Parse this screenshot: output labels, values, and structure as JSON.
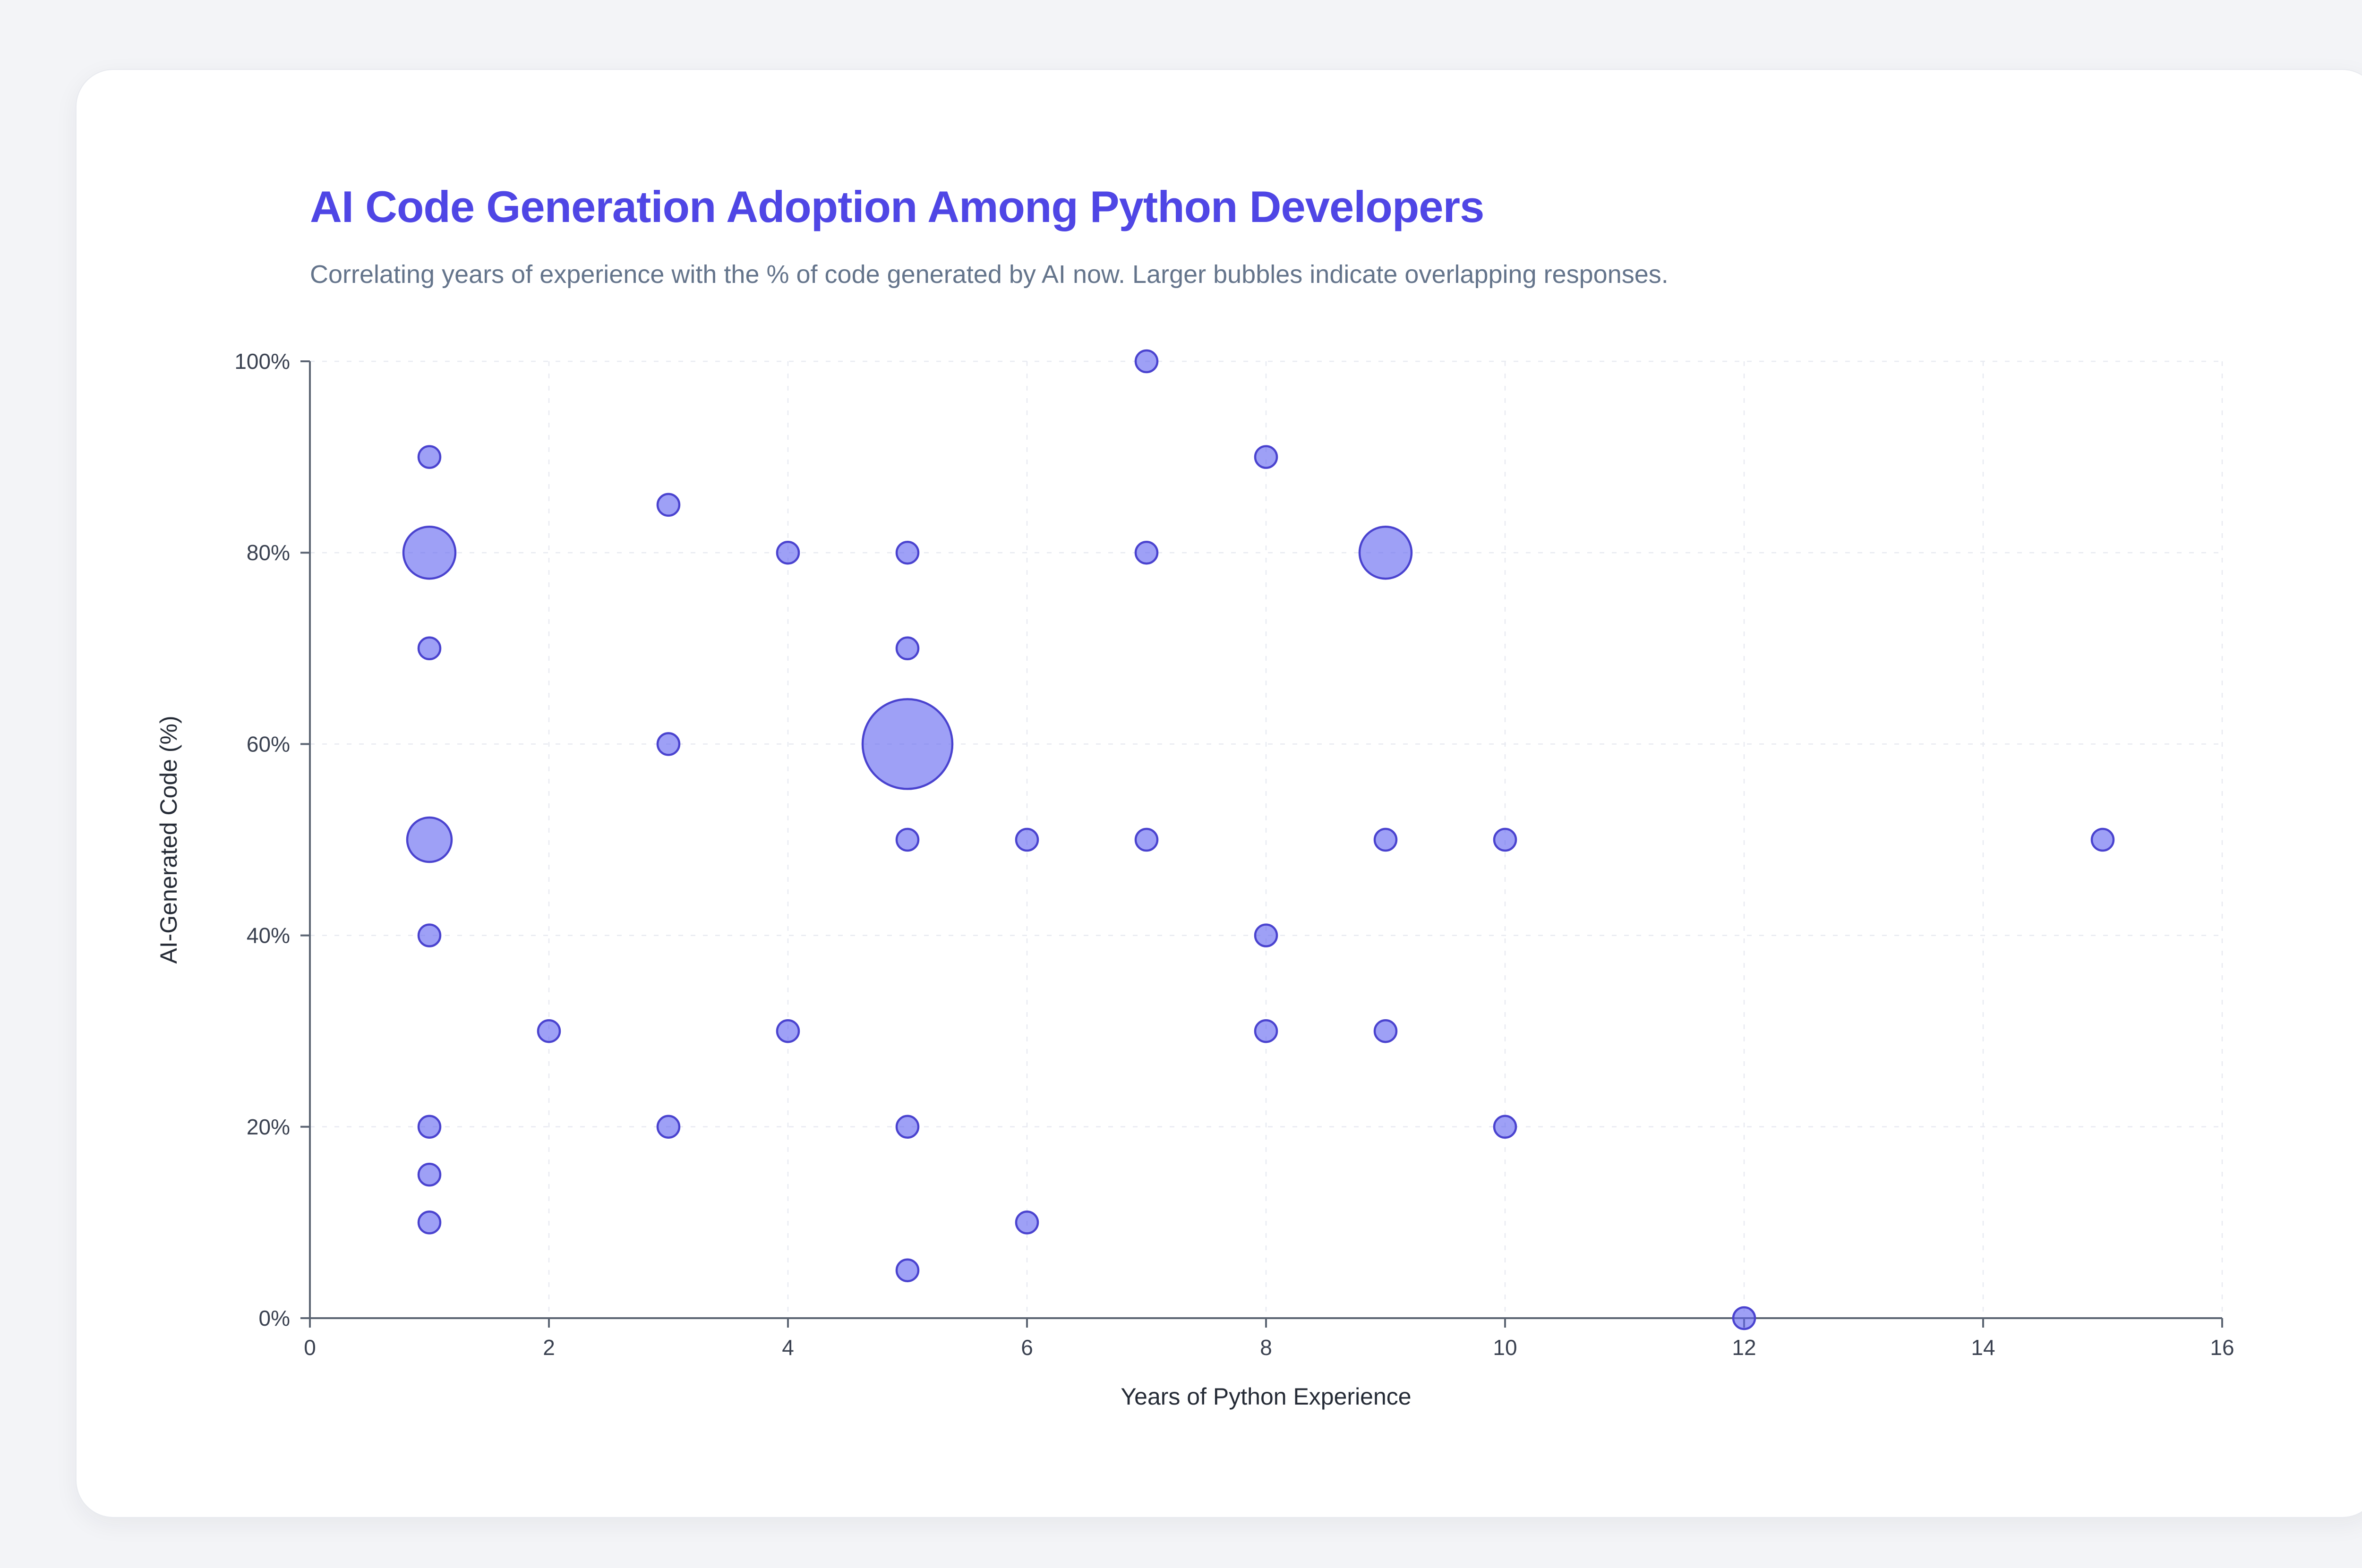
{
  "page": {
    "background": "#f3f4f7"
  },
  "header": {
    "title": "AI Code Generation Adoption Among Python Developers",
    "subtitle": "Correlating years of experience with the % of code generated by AI now. Larger bubbles indicate overlapping responses."
  },
  "chart_data": {
    "type": "scatter",
    "subtype": "bubble",
    "title": "AI Code Generation Adoption Among Python Developers",
    "xlabel": "Years of Python Experience",
    "ylabel": "AI-Generated Code (%)",
    "xlim": [
      0,
      16
    ],
    "ylim": [
      0,
      100
    ],
    "grid": "dashed",
    "legend": "none",
    "colors": {
      "title": "#4f46e5",
      "bubble_fill": "#6366f1",
      "bubble_stroke": "#4a43cf",
      "axis": "#5b6472",
      "gridline": "#e8eaf1"
    },
    "xticks": [
      {
        "v": 0,
        "label": "0"
      },
      {
        "v": 2,
        "label": "2"
      },
      {
        "v": 4,
        "label": "4"
      },
      {
        "v": 6,
        "label": "6"
      },
      {
        "v": 8,
        "label": "8"
      },
      {
        "v": 10,
        "label": "10"
      },
      {
        "v": 12,
        "label": "12"
      },
      {
        "v": 14,
        "label": "14"
      },
      {
        "v": 16,
        "label": "16"
      }
    ],
    "yticks": [
      {
        "v": 0,
        "label": "0%"
      },
      {
        "v": 20,
        "label": "20%"
      },
      {
        "v": 40,
        "label": "40%"
      },
      {
        "v": 60,
        "label": "60%"
      },
      {
        "v": 80,
        "label": "80%"
      },
      {
        "v": 100,
        "label": "100%"
      }
    ],
    "points": [
      {
        "x": 1,
        "y": 90,
        "count": 1
      },
      {
        "x": 1,
        "y": 80,
        "count": 5
      },
      {
        "x": 1,
        "y": 70,
        "count": 1
      },
      {
        "x": 1,
        "y": 50,
        "count": 4
      },
      {
        "x": 1,
        "y": 40,
        "count": 1
      },
      {
        "x": 1,
        "y": 20,
        "count": 1
      },
      {
        "x": 1,
        "y": 15,
        "count": 1
      },
      {
        "x": 1,
        "y": 10,
        "count": 1
      },
      {
        "x": 2,
        "y": 30,
        "count": 1
      },
      {
        "x": 3,
        "y": 85,
        "count": 1
      },
      {
        "x": 3,
        "y": 60,
        "count": 1
      },
      {
        "x": 3,
        "y": 20,
        "count": 1
      },
      {
        "x": 4,
        "y": 80,
        "count": 1
      },
      {
        "x": 4,
        "y": 30,
        "count": 1
      },
      {
        "x": 5,
        "y": 80,
        "count": 1
      },
      {
        "x": 5,
        "y": 70,
        "count": 1
      },
      {
        "x": 5,
        "y": 60,
        "count": 10
      },
      {
        "x": 5,
        "y": 50,
        "count": 1
      },
      {
        "x": 5,
        "y": 20,
        "count": 1
      },
      {
        "x": 5,
        "y": 5,
        "count": 1
      },
      {
        "x": 6,
        "y": 50,
        "count": 1
      },
      {
        "x": 6,
        "y": 10,
        "count": 1
      },
      {
        "x": 7,
        "y": 100,
        "count": 1
      },
      {
        "x": 7,
        "y": 80,
        "count": 1
      },
      {
        "x": 7,
        "y": 50,
        "count": 1
      },
      {
        "x": 8,
        "y": 90,
        "count": 1
      },
      {
        "x": 8,
        "y": 40,
        "count": 1
      },
      {
        "x": 8,
        "y": 30,
        "count": 1
      },
      {
        "x": 9,
        "y": 80,
        "count": 5
      },
      {
        "x": 9,
        "y": 50,
        "count": 1
      },
      {
        "x": 9,
        "y": 30,
        "count": 1
      },
      {
        "x": 10,
        "y": 50,
        "count": 1
      },
      {
        "x": 10,
        "y": 20,
        "count": 1
      },
      {
        "x": 12,
        "y": 0,
        "count": 1
      },
      {
        "x": 15,
        "y": 50,
        "count": 1
      }
    ]
  }
}
